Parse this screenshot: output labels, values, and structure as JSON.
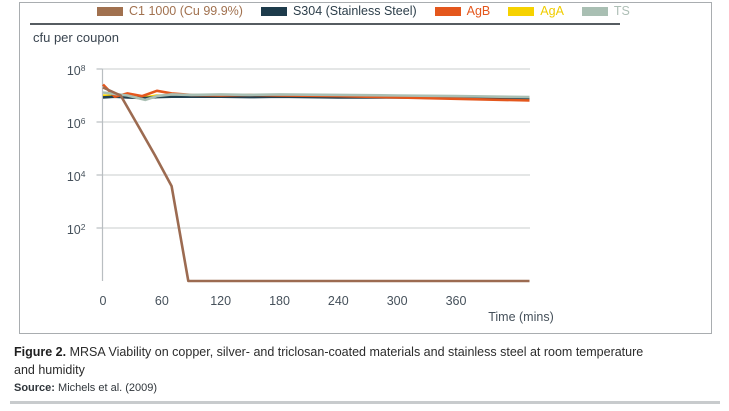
{
  "legend": {
    "items": [
      {
        "id": "c11000",
        "label": "C1 1000 (Cu 99.9%)",
        "color": "#a1714f",
        "text_color": "#a1714f"
      },
      {
        "id": "s304",
        "label": "S304 (Stainless Steel)",
        "color": "#1d3b4b",
        "text_color": "#2c3e4a"
      },
      {
        "id": "agb",
        "label": "AgB",
        "color": "#e4571d",
        "text_color": "#e4571d"
      },
      {
        "id": "aga",
        "label": "AgA",
        "color": "#f6d200",
        "text_color": "#f0cd00"
      },
      {
        "id": "ts",
        "label": "TS",
        "color": "#a9bfb3",
        "text_color": "#aebfb6"
      }
    ]
  },
  "chart_data": {
    "type": "line",
    "title": "",
    "ylabel": "cfu per coupon",
    "xlabel": "Time (mins)",
    "y_scale": "log",
    "y_tick_exponents": [
      8,
      6,
      4,
      2
    ],
    "y_range_exponents": [
      0,
      8
    ],
    "x_ticks": [
      0,
      60,
      120,
      180,
      240,
      300,
      360
    ],
    "x_range": [
      0,
      435
    ],
    "grid": "horizontal",
    "legend_position": "top",
    "series": [
      {
        "name": "C1 1000 (Cu 99.9%)",
        "color": "#9c6b51",
        "draw_order": 5,
        "points": [
          [
            0,
            20000000.0
          ],
          [
            18,
            10000000.0
          ],
          [
            36,
            700000.0
          ],
          [
            53,
            55000.0
          ],
          [
            70,
            3800
          ],
          [
            87,
            1
          ],
          [
            120,
            1
          ],
          [
            180,
            1
          ],
          [
            240,
            1
          ],
          [
            300,
            1
          ],
          [
            360,
            1
          ],
          [
            435,
            1
          ]
        ]
      },
      {
        "name": "S304 (Stainless Steel)",
        "color": "#22404f",
        "draw_order": 2,
        "points": [
          [
            0,
            8500000.0
          ],
          [
            12,
            9000000.0
          ],
          [
            25,
            8500000.0
          ],
          [
            43,
            8000000.0
          ],
          [
            55,
            8700000.0
          ],
          [
            70,
            9000000.0
          ],
          [
            90,
            9000000.0
          ],
          [
            120,
            9000000.0
          ],
          [
            150,
            8700000.0
          ],
          [
            180,
            9000000.0
          ],
          [
            240,
            8500000.0
          ],
          [
            300,
            8500000.0
          ],
          [
            360,
            8000000.0
          ],
          [
            435,
            8000000.0
          ]
        ]
      },
      {
        "name": "AgB",
        "color": "#e4571d",
        "draw_order": 3,
        "points": [
          [
            0,
            26000000.0
          ],
          [
            12,
            9000000.0
          ],
          [
            25,
            12000000.0
          ],
          [
            40,
            9500000.0
          ],
          [
            55,
            15000000.0
          ],
          [
            70,
            12000000.0
          ],
          [
            90,
            10500000.0
          ],
          [
            120,
            10000000.0
          ],
          [
            150,
            10500000.0
          ],
          [
            180,
            10000000.0
          ],
          [
            240,
            9500000.0
          ],
          [
            300,
            8500000.0
          ],
          [
            360,
            7500000.0
          ],
          [
            435,
            6500000.0
          ]
        ]
      },
      {
        "name": "AgA",
        "color": "#f6d200",
        "draw_order": 1,
        "points": [
          [
            0,
            10000000.0
          ],
          [
            12,
            9500000.0
          ],
          [
            25,
            9000000.0
          ],
          [
            43,
            8500000.0
          ],
          [
            55,
            10000000.0
          ],
          [
            70,
            9500000.0
          ],
          [
            90,
            9500000.0
          ],
          [
            120,
            10000000.0
          ],
          [
            150,
            9500000.0
          ],
          [
            180,
            9500000.0
          ],
          [
            240,
            9500000.0
          ],
          [
            300,
            9000000.0
          ],
          [
            360,
            8500000.0
          ],
          [
            435,
            7500000.0
          ]
        ]
      },
      {
        "name": "TS",
        "color": "#a9bfb3",
        "draw_order": 4,
        "points": [
          [
            0,
            13000000.0
          ],
          [
            12,
            11500000.0
          ],
          [
            25,
            10000000.0
          ],
          [
            43,
            6800000.0
          ],
          [
            55,
            9500000.0
          ],
          [
            70,
            11000000.0
          ],
          [
            90,
            10500000.0
          ],
          [
            120,
            11000000.0
          ],
          [
            150,
            10500000.0
          ],
          [
            180,
            11000000.0
          ],
          [
            240,
            10500000.0
          ],
          [
            300,
            10000000.0
          ],
          [
            360,
            9500000.0
          ],
          [
            435,
            8700000.0
          ]
        ]
      }
    ],
    "colors": {
      "grid": "#c8ccce",
      "axis": "#b9bec1",
      "tick_text": "#46515b"
    }
  },
  "axis": {
    "y_title": "cfu per coupon",
    "x_title": "Time (mins)"
  },
  "caption": {
    "label": "Figure 2.",
    "text": " MRSA Viability on copper, silver- and triclosan-coated materials and stainless steel at room temperature and humidity"
  },
  "source": {
    "label": "Source:",
    "text": " Michels et al. (2009)"
  }
}
